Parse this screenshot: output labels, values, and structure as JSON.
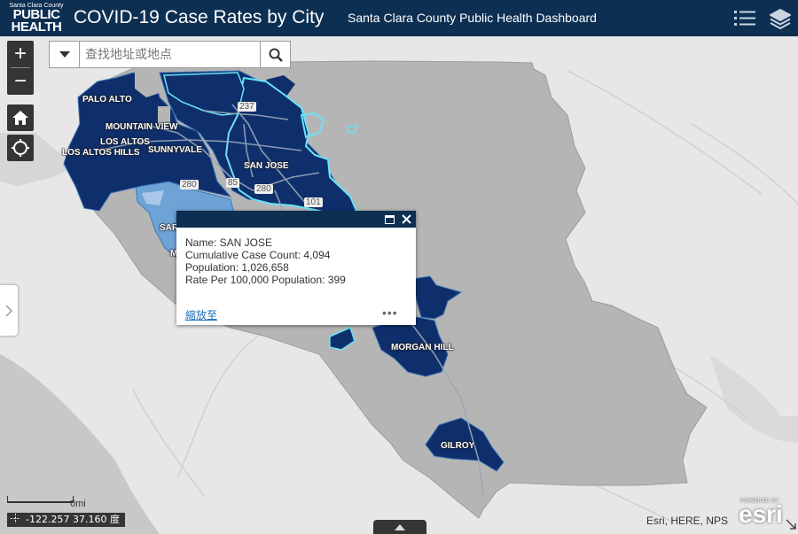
{
  "header": {
    "logo_line1": "Santa Clara County",
    "logo_line2": "PUBLIC",
    "logo_line3": "HEALTH",
    "title": "COVID-19 Case Rates by City",
    "subtitle": "Santa Clara County Public Health Dashboard",
    "icons": [
      "legend-list-icon",
      "layers-icon"
    ]
  },
  "search": {
    "placeholder": "查找地址或地点"
  },
  "controls": {
    "zoom_in": "+",
    "zoom_out": "−",
    "icons": [
      "home-icon",
      "locate-icon"
    ]
  },
  "city_labels": {
    "palo_alto": "PALO ALTO",
    "mountain_view": "MOUNTAIN VIEW",
    "los_altos": "LOS ALTOS",
    "los_altos_hills": "LOS ALTOS HILLS",
    "sunnyvale": "SUNNYVALE",
    "san_jose": "SAN JOSE",
    "saratoga_partial": "SAR",
    "monte_sereno_partial": "M",
    "morgan_hill": "MORGAN HILL",
    "gilroy": "GILROY"
  },
  "highway_labels": {
    "h237": "237",
    "h280a": "280",
    "h280b": "280",
    "h85": "85",
    "h101": "101"
  },
  "popup": {
    "name_label": "Name: SAN JOSE",
    "case_count": "Cumulative Case Count: 4,094",
    "population": "Population: 1,026,658",
    "rate": "Rate Per 100,000 Population: 399",
    "zoom_to": "縮放至",
    "more": "•••"
  },
  "scale": {
    "label": "0mi"
  },
  "coordinates": {
    "text": "-122.257 37.160 度"
  },
  "attribution": "Esri, HERE, NPS",
  "esri_logo": {
    "powered_by": "POWERED BY",
    "name": "esri"
  },
  "colors": {
    "header_bg": "#0d2f52",
    "county_fill": "#b3b3b3",
    "high_rate": "#0e2f6b",
    "medium_rate": "#6c9fd3",
    "low_rate": "#a9c4e6",
    "selected_outline": "#66e4f5",
    "base_map": "#e7e7e7"
  }
}
